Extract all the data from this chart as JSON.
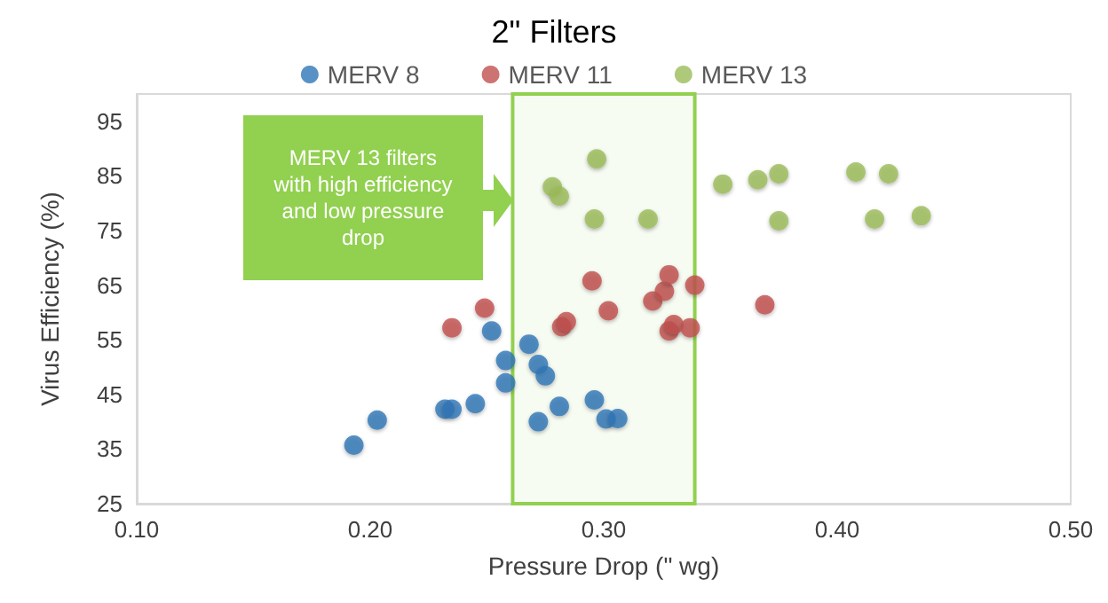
{
  "chart_data": {
    "type": "scatter",
    "title": "2\" Filters",
    "xlabel": "Pressure Drop (\" wg)",
    "ylabel": "Virus Efficiency (%)",
    "xlim": [
      0.1,
      0.5
    ],
    "xticks": [
      {
        "value": 0.1,
        "label": "0.10"
      },
      {
        "value": 0.2,
        "label": "0.20"
      },
      {
        "value": 0.3,
        "label": "0.30"
      },
      {
        "value": 0.4,
        "label": "0.40"
      },
      {
        "value": 0.5,
        "label": "0.50"
      }
    ],
    "ylim": [
      25,
      100
    ],
    "yticks": [
      25,
      35,
      45,
      55,
      65,
      75,
      85,
      95
    ],
    "grid": false,
    "legend": "top",
    "marker": "circle",
    "series": [
      {
        "name": "MERV 8",
        "color": "#2e75b6",
        "x": [
          0.193,
          0.203,
          0.232,
          0.235,
          0.245,
          0.252,
          0.258,
          0.258,
          0.268,
          0.272,
          0.275,
          0.272,
          0.281,
          0.296,
          0.301,
          0.306
        ],
        "values": [
          35.7,
          40.3,
          42.3,
          42.3,
          43.3,
          56.6,
          51.2,
          47.1,
          54.2,
          50.5,
          48.4,
          40.0,
          42.8,
          44.0,
          40.5,
          40.6
        ]
      },
      {
        "name": "MERV 11",
        "color": "#c0504d",
        "x": [
          0.235,
          0.249,
          0.282,
          0.284,
          0.295,
          0.302,
          0.321,
          0.326,
          0.328,
          0.339,
          0.328,
          0.33,
          0.337,
          0.369
        ],
        "values": [
          57.2,
          60.8,
          57.4,
          58.3,
          65.8,
          60.3,
          62.1,
          63.9,
          66.9,
          65.0,
          56.6,
          57.8,
          57.2,
          61.4
        ]
      },
      {
        "name": "MERV 13",
        "color": "#9bbb59",
        "x": [
          0.278,
          0.281,
          0.297,
          0.296,
          0.319,
          0.351,
          0.366,
          0.375,
          0.408,
          0.422,
          0.375,
          0.416,
          0.436
        ],
        "values": [
          83.0,
          81.3,
          88.1,
          77.1,
          77.1,
          83.5,
          84.3,
          85.4,
          85.7,
          85.4,
          76.8,
          77.1,
          77.7
        ]
      }
    ],
    "bands": [
      {
        "axis": "x",
        "from": 0.261,
        "to": 0.339,
        "color": "#92d050"
      }
    ],
    "annotations": [
      "MERV 13 filters with high efficiency and low pressure drop"
    ]
  }
}
